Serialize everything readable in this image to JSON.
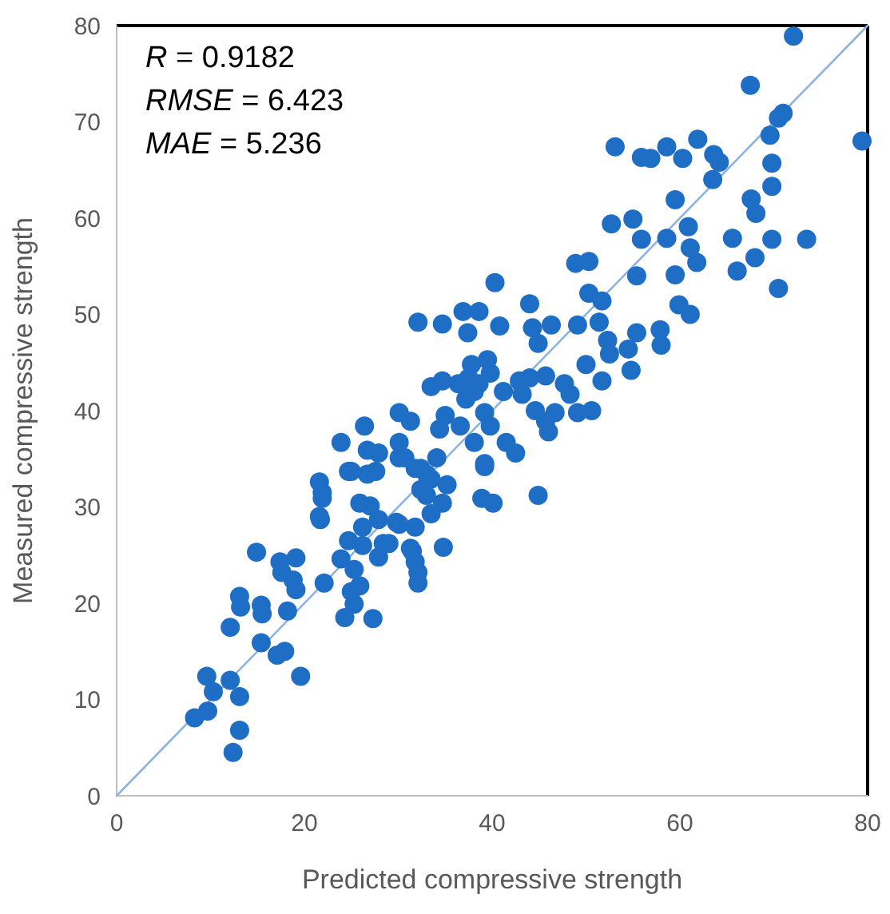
{
  "chart_data": {
    "type": "scatter",
    "xlabel": "Predicted compressive strength",
    "ylabel": "Measured compressive strength",
    "xlim": [
      0,
      80
    ],
    "ylim": [
      0,
      80
    ],
    "xticks": [
      0,
      20,
      40,
      60,
      80
    ],
    "yticks": [
      0,
      10,
      20,
      30,
      40,
      50,
      60,
      70,
      80
    ],
    "grid": false,
    "annotations": [
      "R = 0.9182",
      "RMSE = 6.423",
      "MAE = 5.236"
    ],
    "series": [
      {
        "type": "line",
        "color": "#8db3e2",
        "x": [
          0,
          80
        ],
        "values": [
          0,
          80
        ]
      },
      {
        "marker": "circle",
        "color": "#1f6ec5",
        "x": [
          12.4,
          13.1,
          8.3,
          9.7,
          9.6,
          10.3,
          12.1,
          13.1,
          19.6,
          15.4,
          17.1,
          17.9,
          12.1,
          13.1,
          13.2,
          15.4,
          15.5,
          18.2,
          14.9,
          17.4,
          19.1,
          17.6,
          18.8,
          19.1,
          22.1,
          24.3,
          27.3,
          23.9,
          25.3,
          25.0,
          25.9,
          25.3,
          26.2,
          24.7,
          27.9,
          29.0,
          30.1,
          31.8,
          31.5,
          31.8,
          32.1,
          32.1,
          34.8,
          21.6,
          21.9,
          21.7,
          24.7,
          26.7,
          27.6,
          25.9,
          27.0,
          27.9,
          26.2,
          30.1,
          32.4,
          33.5,
          33.0,
          35.2,
          34.7,
          33.5,
          39.2,
          38.9,
          40.1,
          48.9,
          50.3,
          40.3,
          44.0,
          50.3,
          51.7,
          32.1,
          34.7,
          36.9,
          38.6,
          37.4,
          40.8,
          44.3,
          44.9,
          46.3,
          49.1,
          51.4,
          52.3,
          54.5,
          52.5,
          54.8,
          50.0,
          51.7,
          37.8,
          39.5,
          39.8,
          37.5,
          36.4,
          33.5,
          34.7,
          38.1,
          37.2,
          38.6,
          41.2,
          42.9,
          44.0,
          45.7,
          43.2,
          44.6,
          45.7,
          46.0,
          47.7,
          48.3,
          46.7,
          49.1,
          50.6,
          30.1,
          31.3,
          35.0,
          34.4,
          36.6,
          39.2,
          39.8,
          38.1,
          41.5,
          42.5,
          39.2,
          26.4,
          23.9,
          26.7,
          27.9,
          25.0,
          21.9,
          21.6,
          30.1,
          30.7,
          31.8,
          33.0,
          34.1,
          32.4,
          44.9,
          29.8,
          28.4,
          31.3,
          72.1,
          67.5,
          79.4,
          71.0,
          70.5,
          69.6,
          69.8,
          69.8,
          67.6,
          68.1,
          69.8,
          73.5,
          65.6,
          68.0,
          66.1,
          70.5,
          53.1,
          55.9,
          56.9,
          58.6,
          60.3,
          61.9,
          63.6,
          64.2,
          63.5,
          59.5,
          52.7,
          55.0,
          55.9,
          58.6,
          60.9,
          61.1,
          61.8,
          59.5,
          55.4,
          59.9,
          61.1,
          55.4,
          57.9,
          58.0
        ],
        "values": [
          4.5,
          6.8,
          8.1,
          8.8,
          12.4,
          10.8,
          12.0,
          10.3,
          12.4,
          15.9,
          14.6,
          15.0,
          17.5,
          20.7,
          19.6,
          19.8,
          18.9,
          19.2,
          25.3,
          24.3,
          24.7,
          23.2,
          22.4,
          21.4,
          22.1,
          18.5,
          18.4,
          24.6,
          23.5,
          21.2,
          21.8,
          19.9,
          26.0,
          26.5,
          24.8,
          26.2,
          28.2,
          27.9,
          25.4,
          24.3,
          23.2,
          22.1,
          25.8,
          32.6,
          30.9,
          28.7,
          33.7,
          33.4,
          33.7,
          30.4,
          30.1,
          28.7,
          27.9,
          35.1,
          34.0,
          32.9,
          31.2,
          32.3,
          30.4,
          29.3,
          34.2,
          30.9,
          30.4,
          55.3,
          55.5,
          53.3,
          51.1,
          52.2,
          51.4,
          49.2,
          49.0,
          50.3,
          50.3,
          48.1,
          48.8,
          48.6,
          47.0,
          48.9,
          48.9,
          49.2,
          47.3,
          46.4,
          45.9,
          44.2,
          44.8,
          43.1,
          44.8,
          45.3,
          43.9,
          43.4,
          42.8,
          42.5,
          43.1,
          42.0,
          41.2,
          42.8,
          42.0,
          43.1,
          43.4,
          43.6,
          41.7,
          40.0,
          38.9,
          37.8,
          42.8,
          41.7,
          39.8,
          39.8,
          40.0,
          39.8,
          38.9,
          39.5,
          38.1,
          38.4,
          39.8,
          38.4,
          36.7,
          36.7,
          35.6,
          34.5,
          38.4,
          36.7,
          35.9,
          35.6,
          33.7,
          31.5,
          29.0,
          36.7,
          35.1,
          34.0,
          33.4,
          35.1,
          31.8,
          31.2,
          28.4,
          26.2,
          25.7,
          78.9,
          73.8,
          68.0,
          70.9,
          70.4,
          68.6,
          65.7,
          63.3,
          62.0,
          60.5,
          57.8,
          57.8,
          57.9,
          55.9,
          54.5,
          52.7,
          67.4,
          66.3,
          66.2,
          67.4,
          66.2,
          68.2,
          66.6,
          65.8,
          64.0,
          61.9,
          59.4,
          59.9,
          57.8,
          57.9,
          59.1,
          56.9,
          55.4,
          54.1,
          54.0,
          51.0,
          50.0,
          48.1,
          48.4,
          46.8
        ]
      }
    ]
  }
}
